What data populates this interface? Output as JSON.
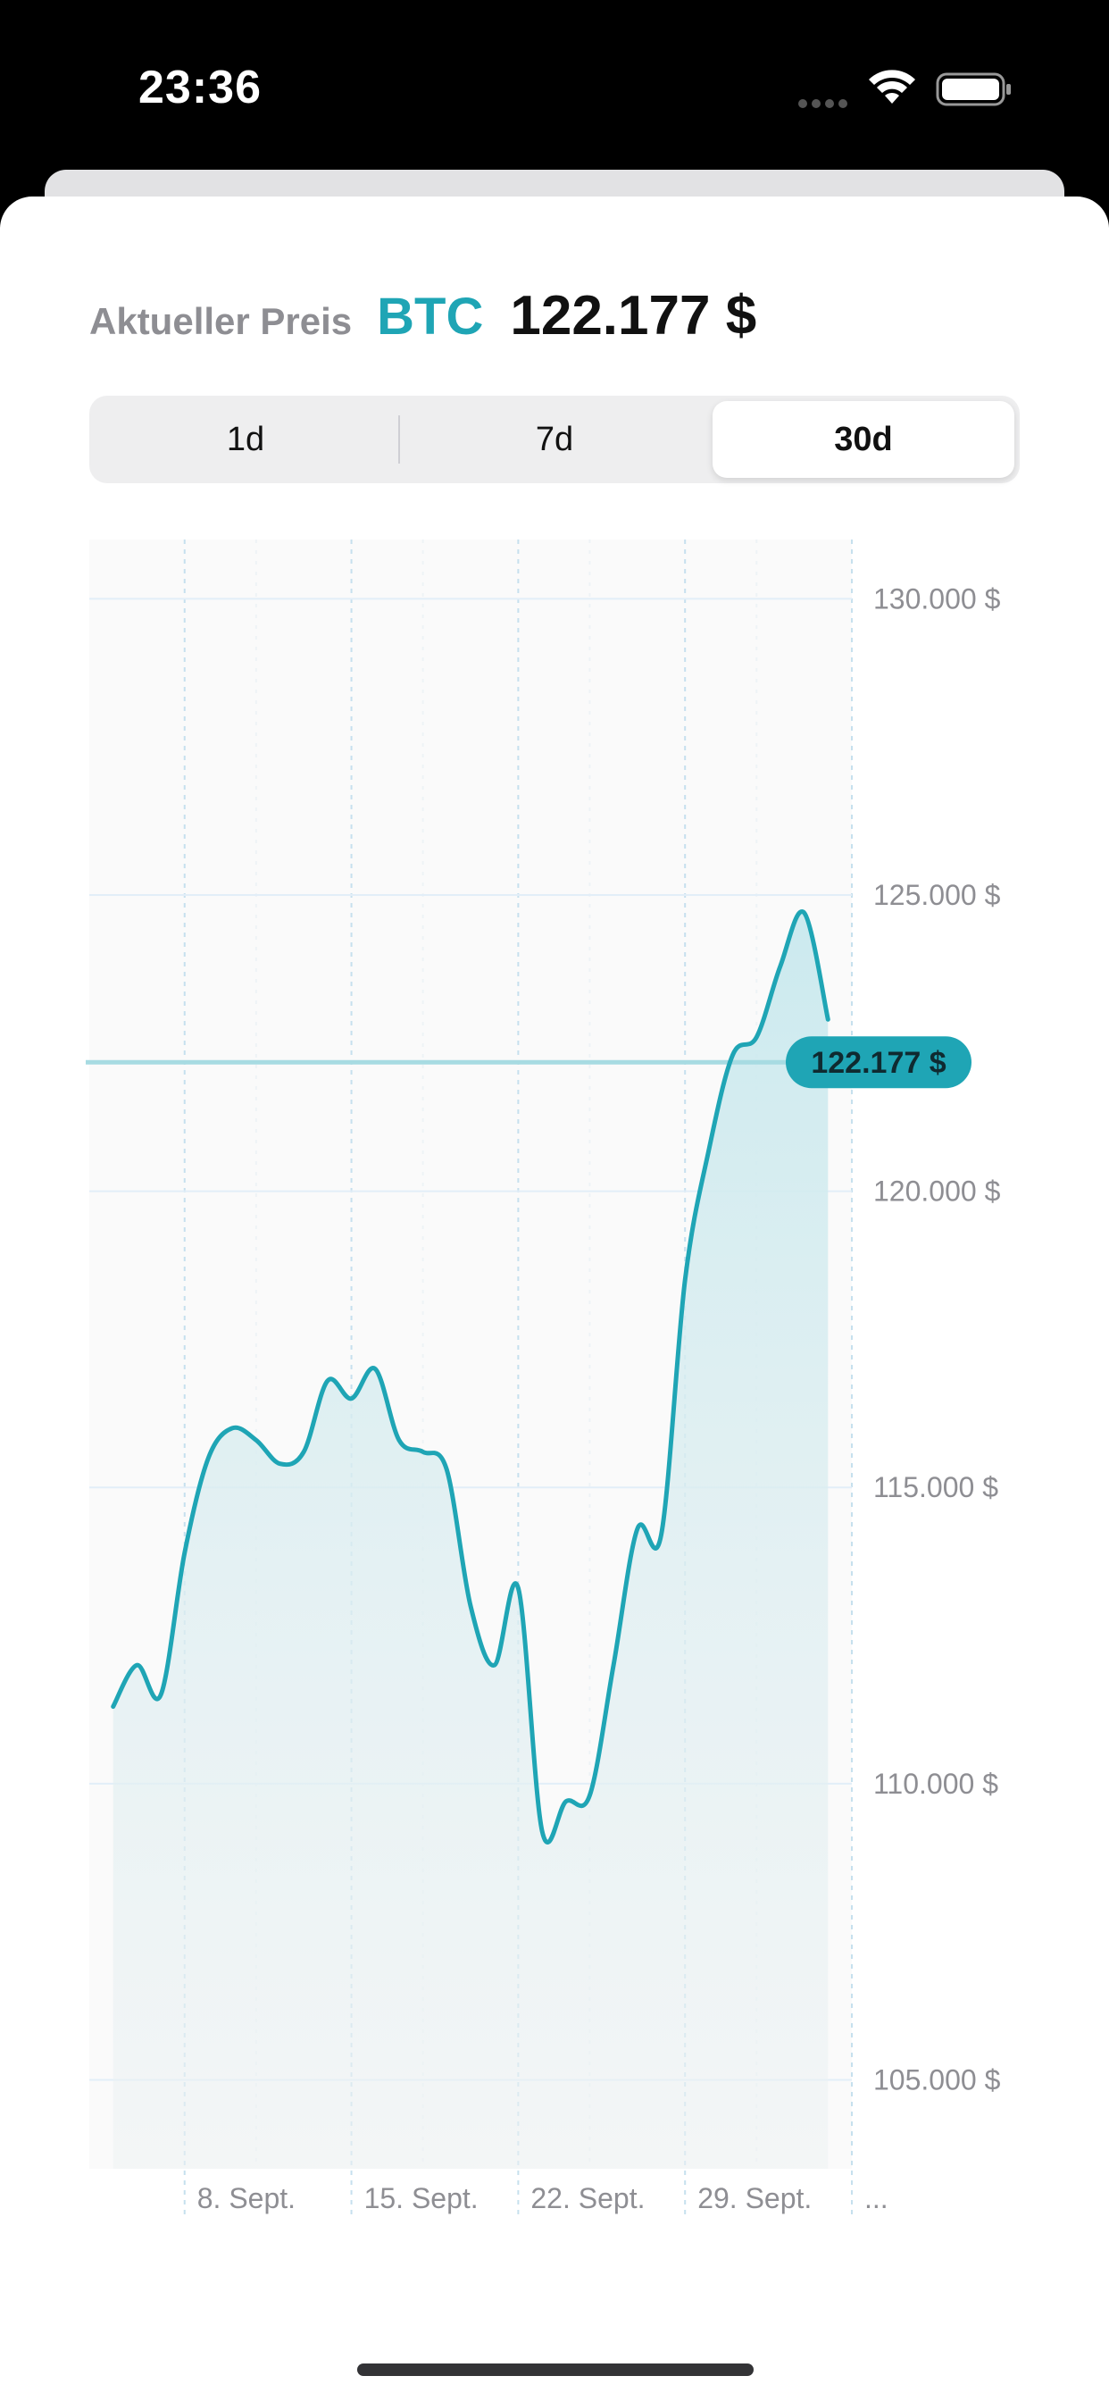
{
  "status_bar": {
    "time": "23:36",
    "icons": [
      "cellular-signal-icon",
      "wifi-icon",
      "battery-icon"
    ]
  },
  "header": {
    "label": "Aktueller Preis",
    "symbol": "BTC",
    "price": "122.177 $"
  },
  "range_selector": {
    "options": [
      "1d",
      "7d",
      "30d"
    ],
    "selected": "30d"
  },
  "colors": {
    "accent": "#1fa5b5",
    "line": "#1fa5b5",
    "area_top": "#c9e9ee",
    "badge_bg": "#1fa5b5",
    "gridline": "#e6f1f8"
  },
  "chart_data": {
    "type": "area",
    "title": "",
    "xlabel": "",
    "ylabel": "",
    "ylim": [
      103500,
      131000
    ],
    "y_ticks": [
      130000,
      125000,
      120000,
      115000,
      110000,
      105000
    ],
    "y_tick_labels": [
      "130.000 $",
      "125.000 $",
      "120.000 $",
      "115.000 $",
      "110.000 $",
      "105.000 $"
    ],
    "x_range": [
      "2025-09-04",
      "2025-10-06"
    ],
    "x_ticks": [
      "2025-09-08",
      "2025-09-15",
      "2025-09-22",
      "2025-09-29",
      "2025-10-06"
    ],
    "x_tick_labels": [
      "8. Sept.",
      "15. Sept.",
      "22. Sept.",
      "29. Sept.",
      "..."
    ],
    "current_value": 122177,
    "current_value_label": "122.177 $",
    "grid": true,
    "series": [
      {
        "x": [
          "2025-09-05",
          "2025-09-06",
          "2025-09-07",
          "2025-09-08",
          "2025-09-09",
          "2025-09-10",
          "2025-09-11",
          "2025-09-12",
          "2025-09-13",
          "2025-09-14",
          "2025-09-15",
          "2025-09-16",
          "2025-09-17",
          "2025-09-18",
          "2025-09-19",
          "2025-09-20",
          "2025-09-21",
          "2025-09-22",
          "2025-09-23",
          "2025-09-24",
          "2025-09-25",
          "2025-09-26",
          "2025-09-27",
          "2025-09-28",
          "2025-09-29",
          "2025-09-30",
          "2025-10-01",
          "2025-10-02",
          "2025-10-03",
          "2025-10-04",
          "2025-10-05"
        ],
        "values": [
          111300,
          112000,
          111500,
          113900,
          115500,
          116000,
          115800,
          115400,
          115600,
          116800,
          116500,
          117000,
          115800,
          115600,
          115300,
          113000,
          112000,
          113300,
          109200,
          109700,
          109800,
          112000,
          114300,
          114200,
          118500,
          120700,
          122300,
          122600,
          123800,
          124700,
          122900
        ]
      }
    ]
  }
}
